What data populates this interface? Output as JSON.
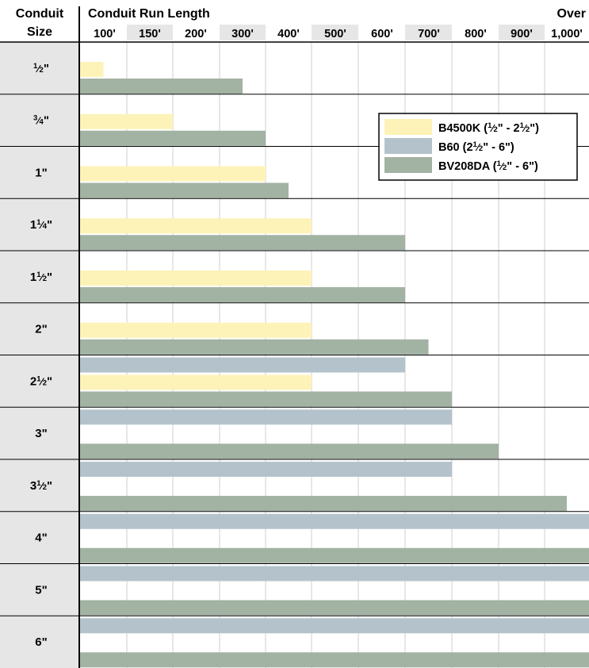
{
  "header": {
    "left_line1": "Conduit",
    "left_line2": "Size",
    "main_title": "Conduit Run Length",
    "over_line1": "Over"
  },
  "colors": {
    "B4500K": "#fdf3b8",
    "B60": "#b4c3cb",
    "BV208DA": "#a2b2a3",
    "shade": "#e6e6e6",
    "grid": "#cfcfcf"
  },
  "chart_data": {
    "type": "bar",
    "orientation": "horizontal",
    "xlabel": "Conduit Run Length",
    "ylabel": "Conduit Size",
    "x_ticks": [
      "100'",
      "150'",
      "200'",
      "300'",
      "400'",
      "500'",
      "600'",
      "700'",
      "800'",
      "900'",
      "1,000'"
    ],
    "categories": [
      "1/2\"",
      "3/4\"",
      "1\"",
      "1 1/4\"",
      "1 1/2\"",
      "2\"",
      "2 1/2\"",
      "3\"",
      "3 1/2\"",
      "4\"",
      "5\"",
      "6\""
    ],
    "category_display": [
      {
        "whole": "",
        "num": "1",
        "den": "2"
      },
      {
        "whole": "",
        "num": "3",
        "den": "4"
      },
      {
        "whole": "1",
        "num": "",
        "den": ""
      },
      {
        "whole": "1",
        "num": "1",
        "den": "4"
      },
      {
        "whole": "1",
        "num": "1",
        "den": "2"
      },
      {
        "whole": "2",
        "num": "",
        "den": ""
      },
      {
        "whole": "2",
        "num": "1",
        "den": "2"
      },
      {
        "whole": "3",
        "num": "",
        "den": ""
      },
      {
        "whole": "3",
        "num": "1",
        "den": "2"
      },
      {
        "whole": "4",
        "num": "",
        "den": ""
      },
      {
        "whole": "5",
        "num": "",
        "den": ""
      },
      {
        "whole": "6",
        "num": "",
        "den": ""
      }
    ],
    "series": [
      {
        "name": "B4500K (1/2\" - 2 1/2\")",
        "key": "B4500K",
        "legend_parts": {
          "pre": "B4500K (",
          "a_num": "1",
          "a_den": "2",
          "mid": "\" - 2",
          "b_num": "1",
          "b_den": "2",
          "post": "\")"
        },
        "values": [
          50,
          150,
          300,
          400,
          400,
          400,
          400,
          null,
          null,
          null,
          null,
          null
        ]
      },
      {
        "name": "B60 (2 1/2\" - 6\")",
        "key": "B60",
        "legend_parts": {
          "pre": "B60 (2",
          "a_num": "1",
          "a_den": "2",
          "mid": "\" - 6\")",
          "b_num": "",
          "b_den": "",
          "post": ""
        },
        "values": [
          null,
          null,
          null,
          null,
          null,
          null,
          600,
          700,
          700,
          "over 1,000'",
          "over 1,000'",
          "over 1,000'"
        ]
      },
      {
        "name": "BV208DA (1/2\" - 6\")",
        "key": "BV208DA",
        "legend_parts": {
          "pre": "BV208DA (",
          "a_num": "1",
          "a_den": "2",
          "mid": "\" - 6\")",
          "b_num": "",
          "b_den": "",
          "post": ""
        },
        "values": [
          250,
          300,
          350,
          600,
          600,
          650,
          700,
          800,
          950,
          "over 1,000'",
          "over 1,000'",
          "over 1,000'"
        ]
      }
    ],
    "legend_position": "top-right",
    "grid": true
  }
}
